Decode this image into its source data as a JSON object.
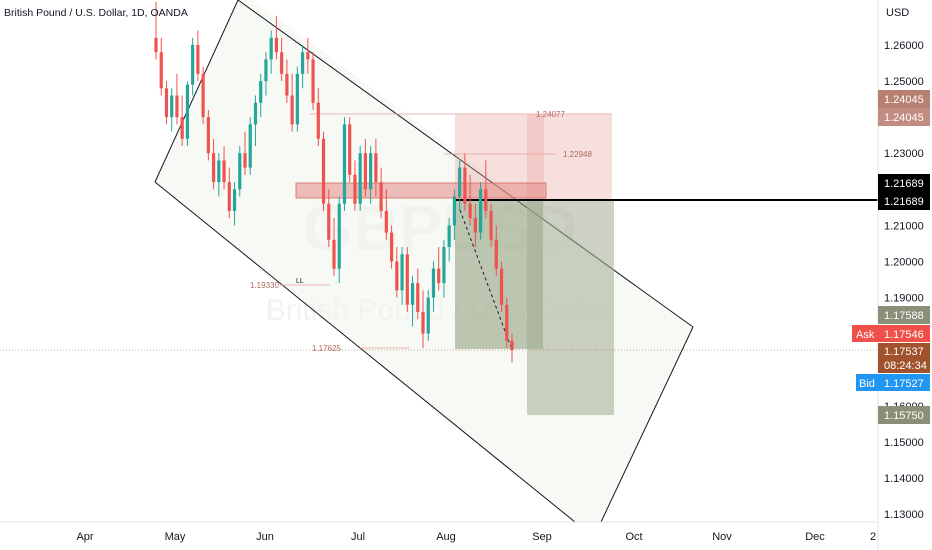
{
  "header": {
    "title": "British Pound / U.S. Dollar, 1D, OANDA",
    "currency": "USD"
  },
  "watermark": {
    "symbol": "GBPUSD",
    "name": "British Pound / U.S. Dollar"
  },
  "colors": {
    "up": "#26a69a",
    "down": "#ef5350",
    "channel": "#131722",
    "zone_fill": "#e8a29d",
    "target_fill": "#8a9a78",
    "ask": "#f0504a",
    "bid": "#2196f3",
    "current": "#a0522d"
  },
  "badges": {
    "target_top": "1.24045",
    "target_bottom": "1.24045",
    "level_top": "1.21689",
    "level_bottom": "1.21689",
    "stop": "1.17588",
    "ask_label": "Ask",
    "ask_value": "1.17546",
    "current_price": "1.17537",
    "countdown": "08:24:34",
    "bid_label": "Bid",
    "bid_value": "1.17527",
    "target_low": "1.15750"
  },
  "annotations": {
    "upper": "1.24077",
    "mid": "1.22948",
    "left_low": "1.19330",
    "low": "1.17625",
    "ll": "LL"
  },
  "chart_data": {
    "type": "candlestick",
    "ylim": [
      1.125,
      1.275
    ],
    "y_ticks": [
      "1.26000",
      "1.25000",
      "1.23000",
      "1.21000",
      "1.20000",
      "1.19000",
      "1.16000",
      "1.15000",
      "1.14000",
      "1.13000"
    ],
    "x_ticks": [
      "Apr",
      "May",
      "Jun",
      "Jul",
      "Aug",
      "Sep",
      "Oct",
      "Nov",
      "Dec",
      "2"
    ],
    "candles": [
      [
        1.262,
        1.272,
        1.256,
        1.258
      ],
      [
        1.258,
        1.262,
        1.246,
        1.248
      ],
      [
        1.248,
        1.25,
        1.238,
        1.24
      ],
      [
        1.24,
        1.248,
        1.236,
        1.246
      ],
      [
        1.246,
        1.252,
        1.238,
        1.24
      ],
      [
        1.24,
        1.246,
        1.232,
        1.234
      ],
      [
        1.234,
        1.25,
        1.232,
        1.249
      ],
      [
        1.249,
        1.262,
        1.246,
        1.26
      ],
      [
        1.26,
        1.264,
        1.25,
        1.252
      ],
      [
        1.252,
        1.254,
        1.238,
        1.24
      ],
      [
        1.24,
        1.242,
        1.228,
        1.23
      ],
      [
        1.23,
        1.234,
        1.22,
        1.222
      ],
      [
        1.222,
        1.23,
        1.218,
        1.228
      ],
      [
        1.228,
        1.232,
        1.22,
        1.222
      ],
      [
        1.222,
        1.226,
        1.212,
        1.214
      ],
      [
        1.214,
        1.222,
        1.21,
        1.22
      ],
      [
        1.22,
        1.232,
        1.218,
        1.23
      ],
      [
        1.23,
        1.236,
        1.224,
        1.226
      ],
      [
        1.226,
        1.24,
        1.224,
        1.238
      ],
      [
        1.238,
        1.246,
        1.232,
        1.244
      ],
      [
        1.244,
        1.252,
        1.24,
        1.25
      ],
      [
        1.25,
        1.258,
        1.246,
        1.256
      ],
      [
        1.256,
        1.264,
        1.252,
        1.262
      ],
      [
        1.262,
        1.268,
        1.256,
        1.258
      ],
      [
        1.258,
        1.262,
        1.25,
        1.252
      ],
      [
        1.252,
        1.256,
        1.244,
        1.246
      ],
      [
        1.246,
        1.252,
        1.236,
        1.238
      ],
      [
        1.238,
        1.254,
        1.236,
        1.252
      ],
      [
        1.252,
        1.26,
        1.248,
        1.258
      ],
      [
        1.258,
        1.262,
        1.252,
        1.256
      ],
      [
        1.256,
        1.258,
        1.242,
        1.244
      ],
      [
        1.244,
        1.248,
        1.232,
        1.234
      ],
      [
        1.234,
        1.236,
        1.214,
        1.216
      ],
      [
        1.216,
        1.22,
        1.204,
        1.206
      ],
      [
        1.206,
        1.212,
        1.196,
        1.198
      ],
      [
        1.198,
        1.218,
        1.194,
        1.216
      ],
      [
        1.216,
        1.24,
        1.214,
        1.238
      ],
      [
        1.238,
        1.24,
        1.222,
        1.224
      ],
      [
        1.224,
        1.228,
        1.214,
        1.216
      ],
      [
        1.216,
        1.232,
        1.214,
        1.23
      ],
      [
        1.23,
        1.234,
        1.218,
        1.22
      ],
      [
        1.22,
        1.232,
        1.216,
        1.23
      ],
      [
        1.23,
        1.234,
        1.218,
        1.222
      ],
      [
        1.222,
        1.226,
        1.212,
        1.214
      ],
      [
        1.214,
        1.22,
        1.206,
        1.208
      ],
      [
        1.208,
        1.21,
        1.198,
        1.2
      ],
      [
        1.2,
        1.204,
        1.19,
        1.192
      ],
      [
        1.192,
        1.204,
        1.188,
        1.202
      ],
      [
        1.202,
        1.204,
        1.186,
        1.188
      ],
      [
        1.188,
        1.196,
        1.182,
        1.194
      ],
      [
        1.194,
        1.198,
        1.184,
        1.186
      ],
      [
        1.186,
        1.192,
        1.176,
        1.18
      ],
      [
        1.18,
        1.192,
        1.178,
        1.19
      ],
      [
        1.19,
        1.2,
        1.186,
        1.198
      ],
      [
        1.198,
        1.204,
        1.192,
        1.194
      ],
      [
        1.194,
        1.206,
        1.19,
        1.204
      ],
      [
        1.204,
        1.212,
        1.2,
        1.21
      ],
      [
        1.21,
        1.22,
        1.206,
        1.218
      ],
      [
        1.218,
        1.228,
        1.214,
        1.226
      ],
      [
        1.226,
        1.23,
        1.214,
        1.216
      ],
      [
        1.216,
        1.224,
        1.21,
        1.212
      ],
      [
        1.212,
        1.216,
        1.204,
        1.208
      ],
      [
        1.208,
        1.222,
        1.206,
        1.22
      ],
      [
        1.22,
        1.228,
        1.212,
        1.214
      ],
      [
        1.214,
        1.216,
        1.204,
        1.206
      ],
      [
        1.206,
        1.21,
        1.196,
        1.198
      ],
      [
        1.198,
        1.2,
        1.186,
        1.188
      ],
      [
        1.188,
        1.19,
        1.176,
        1.178
      ],
      [
        1.178,
        1.18,
        1.172,
        1.1754
      ]
    ]
  }
}
